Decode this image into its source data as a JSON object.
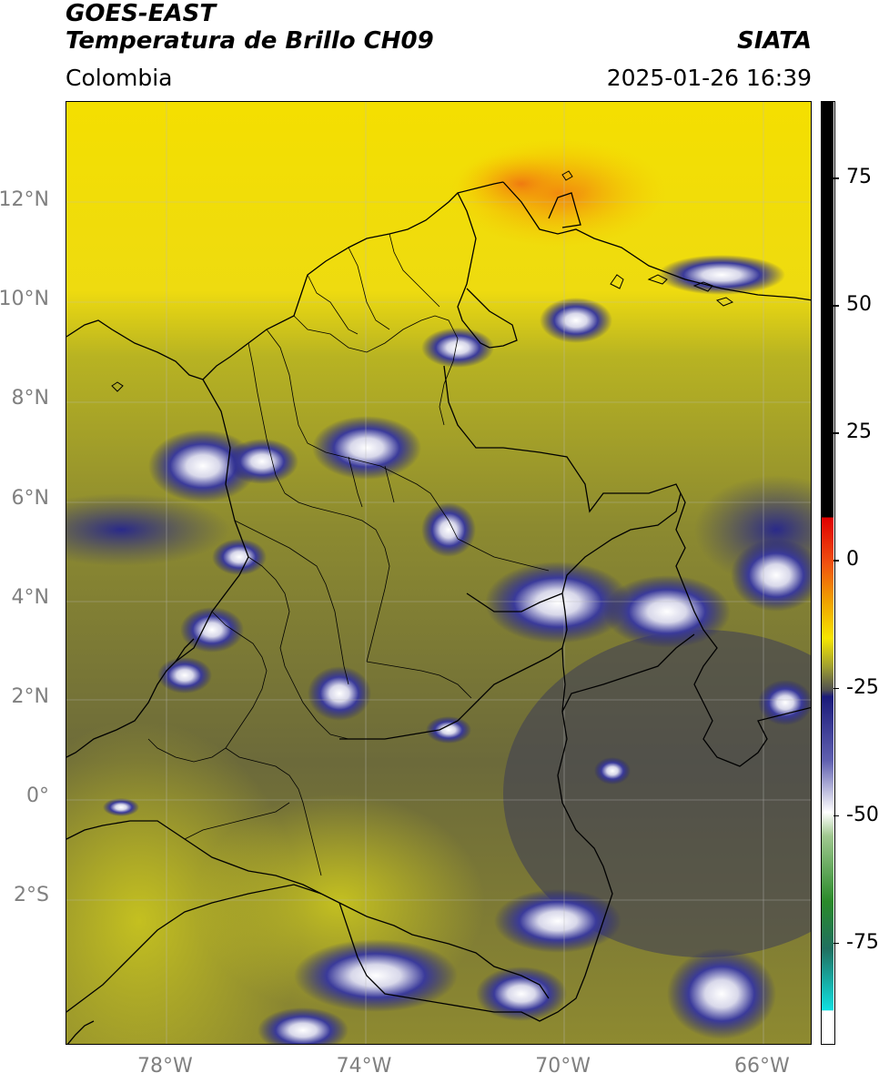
{
  "header": {
    "title_line1": "GOES-EAST",
    "title_line2": "Temperatura de Brillo CH09",
    "agency": "SIATA",
    "region": "Colombia",
    "timestamp": "2025-01-26 16:39"
  },
  "map": {
    "lon_range": [
      -80,
      -65
    ],
    "lat_range": [
      -5,
      14
    ],
    "lat_ticks": [
      {
        "lat": 12,
        "label": "12°N"
      },
      {
        "lat": 10,
        "label": "10°N"
      },
      {
        "lat": 8,
        "label": "8°N"
      },
      {
        "lat": 6,
        "label": "6°N"
      },
      {
        "lat": 4,
        "label": "4°N"
      },
      {
        "lat": 2,
        "label": "2°N"
      },
      {
        "lat": 0,
        "label": "0°"
      },
      {
        "lat": -2,
        "label": "2°S"
      }
    ],
    "lon_ticks": [
      {
        "lon": -78,
        "label": "78°W"
      },
      {
        "lon": -74,
        "label": "74°W"
      },
      {
        "lon": -70,
        "label": "70°W"
      },
      {
        "lon": -66,
        "label": "66°W"
      }
    ],
    "colors": {
      "warm_orange": "#f07a10",
      "yellow": "#f6e600",
      "olive": "#a4a42a",
      "dark_olive": "#5c5c3c",
      "navy": "#1a1a7a",
      "white": "#f4f4f4",
      "green": "#3a8a3a",
      "border": "#000000"
    }
  },
  "colorbar": {
    "range": [
      -95,
      90
    ],
    "ticks": [
      {
        "value": 75,
        "label": "75"
      },
      {
        "value": 50,
        "label": "50"
      },
      {
        "value": 25,
        "label": "25"
      },
      {
        "value": 0,
        "label": "0"
      },
      {
        "value": -25,
        "label": "-25"
      },
      {
        "value": -50,
        "label": "-50"
      },
      {
        "value": -75,
        "label": "-75"
      }
    ]
  }
}
